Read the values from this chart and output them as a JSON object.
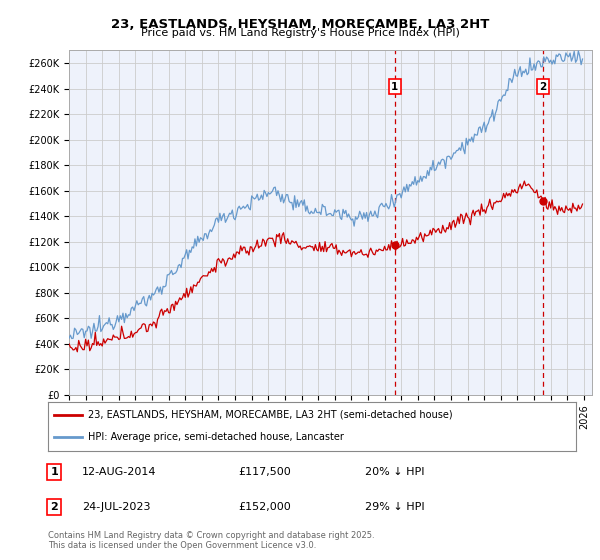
{
  "title": "23, EASTLANDS, HEYSHAM, MORECAMBE, LA3 2HT",
  "subtitle": "Price paid vs. HM Land Registry's House Price Index (HPI)",
  "ylabel_ticks": [
    "£0",
    "£20K",
    "£40K",
    "£60K",
    "£80K",
    "£100K",
    "£120K",
    "£140K",
    "£160K",
    "£180K",
    "£200K",
    "£220K",
    "£240K",
    "£260K"
  ],
  "ytick_values": [
    0,
    20000,
    40000,
    60000,
    80000,
    100000,
    120000,
    140000,
    160000,
    180000,
    200000,
    220000,
    240000,
    260000
  ],
  "ylim": [
    0,
    270000
  ],
  "xlim_start": 1995.0,
  "xlim_end": 2026.5,
  "marker1_date": 2014.62,
  "marker2_date": 2023.54,
  "marker1_price": 117500,
  "marker2_price": 152000,
  "legend_line1": "23, EASTLANDS, HEYSHAM, MORECAMBE, LA3 2HT (semi-detached house)",
  "legend_line2": "HPI: Average price, semi-detached house, Lancaster",
  "line1_color": "#cc0000",
  "line2_color": "#6699cc",
  "dashed_color": "#cc0000",
  "grid_color": "#cccccc",
  "bg_color": "#ffffff",
  "plot_bg": "#eef2fb",
  "footer": "Contains HM Land Registry data © Crown copyright and database right 2025.\nThis data is licensed under the Open Government Licence v3.0."
}
